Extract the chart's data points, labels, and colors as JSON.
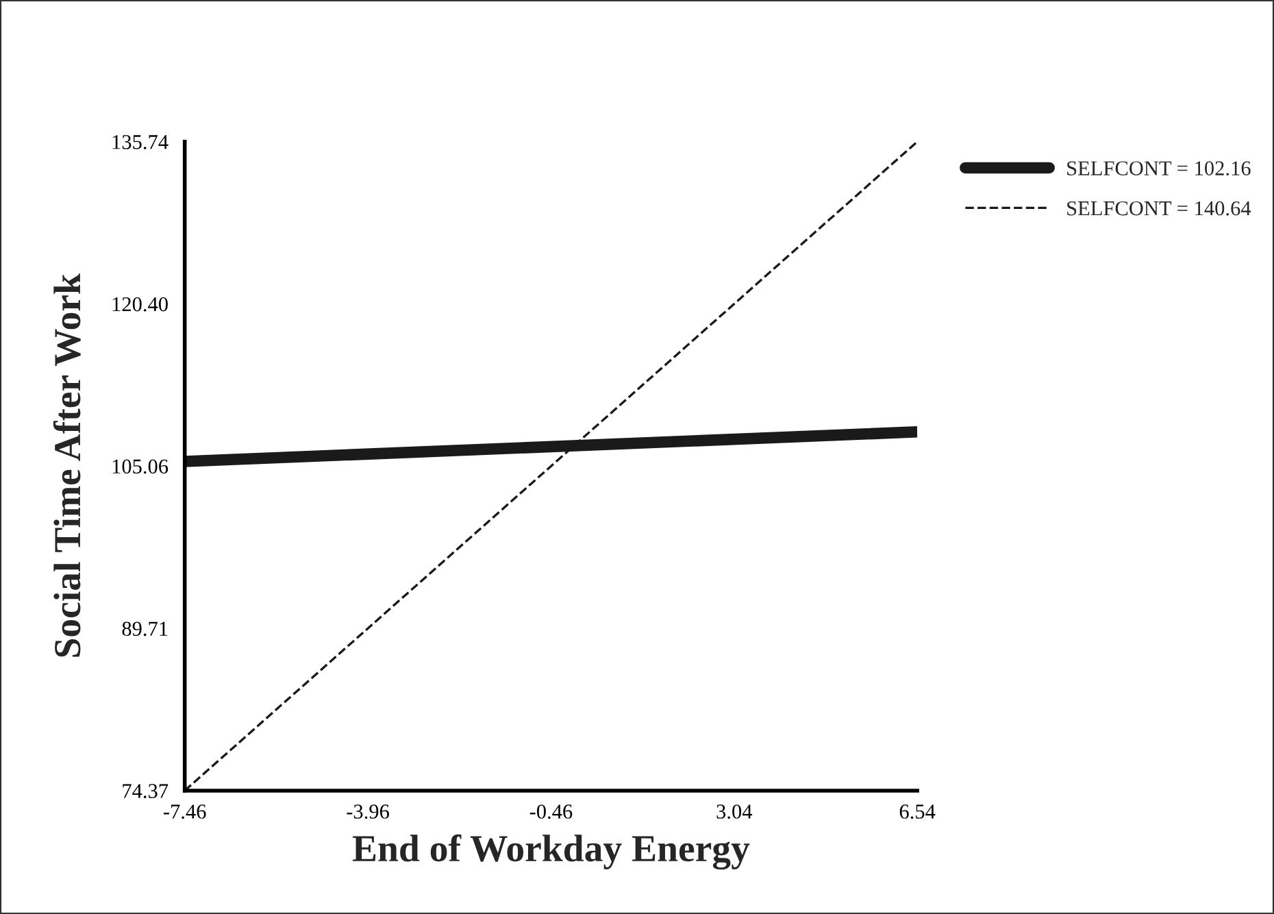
{
  "chart_data": {
    "type": "line",
    "xlabel": "End of Workday Energy",
    "ylabel": "Social Time After Work",
    "x": [
      -7.46,
      6.54
    ],
    "series": [
      {
        "name": "SELFCONT = 102.16",
        "color": "#1a1a1a",
        "line_style": "solid",
        "values": [
          105.5,
          108.3
        ]
      },
      {
        "name": "SELFCONT = 140.64",
        "color": "#1a1a1a",
        "line_style": "dashed",
        "values": [
          74.37,
          135.74
        ]
      }
    ],
    "xlim": [
      -7.46,
      6.54
    ],
    "ylim": [
      74.37,
      135.74
    ],
    "xticks": [
      {
        "value": -7.46,
        "label": "-7.46"
      },
      {
        "value": -3.96,
        "label": "-3.96"
      },
      {
        "value": -0.46,
        "label": "-0.46"
      },
      {
        "value": 3.04,
        "label": "3.04"
      },
      {
        "value": 6.54,
        "label": "6.54"
      }
    ],
    "yticks": [
      {
        "value": 74.37,
        "label": "74.37"
      },
      {
        "value": 89.71,
        "label": "89.71"
      },
      {
        "value": 105.06,
        "label": "105.06"
      },
      {
        "value": 120.4,
        "label": "120.40"
      },
      {
        "value": 135.74,
        "label": "135.74"
      }
    ],
    "legend": "top right",
    "grid": false,
    "marker": "none"
  }
}
